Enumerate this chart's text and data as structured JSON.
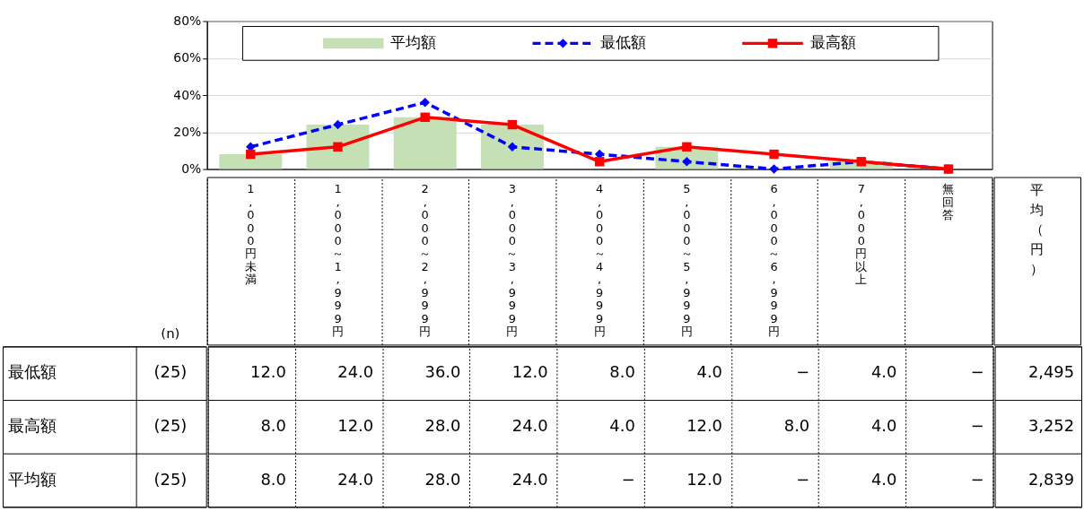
{
  "chart_data": {
    "type": "bar",
    "categories": [
      "1,000円未満",
      "1,000～1,999円",
      "2,000～2,999円",
      "3,000～3,999円",
      "4,000～4,999円",
      "5,000～5,999円",
      "6,000～6,999円",
      "7,000円以上",
      "無回答"
    ],
    "series": [
      {
        "name": "最低額",
        "type": "line",
        "color": "#0000ff",
        "marker": "diamond",
        "line_style": "dashed",
        "values": [
          12.0,
          24.0,
          36.0,
          12.0,
          8.0,
          4.0,
          0,
          4.0,
          0
        ],
        "value_labels": [
          "12.0",
          "24.0",
          "36.0",
          "12.0",
          "8.0",
          "4.0",
          "−",
          "4.0",
          "−"
        ]
      },
      {
        "name": "最高額",
        "type": "line",
        "color": "#ff0000",
        "marker": "square",
        "line_style": "solid",
        "values": [
          8.0,
          12.0,
          28.0,
          24.0,
          4.0,
          12.0,
          8.0,
          4.0,
          0
        ],
        "value_labels": [
          "8.0",
          "12.0",
          "28.0",
          "24.0",
          "4.0",
          "12.0",
          "8.0",
          "4.0",
          "−"
        ]
      },
      {
        "name": "平均額",
        "color": "#c5e0b4",
        "values": [
          8.0,
          24.0,
          28.0,
          24.0,
          0,
          12.0,
          0,
          4.0,
          0
        ],
        "value_labels": [
          "8.0",
          "24.0",
          "28.0",
          "24.0",
          "−",
          "12.0",
          "−",
          "4.0",
          "−"
        ]
      }
    ],
    "ylim": [
      0,
      80
    ],
    "yticks": [
      {
        "value": 0,
        "label": "0%"
      },
      {
        "value": 20,
        "label": "20%"
      },
      {
        "value": 40,
        "label": "40%"
      },
      {
        "value": 60,
        "label": "60%"
      },
      {
        "value": 80,
        "label": "80%"
      }
    ],
    "grid": "y",
    "legend": "top",
    "annotations": [
      "(n)",
      "(25)",
      "(25)",
      "(25)",
      "平均（円）",
      "2,495",
      "3,252",
      "2,839"
    ]
  }
}
